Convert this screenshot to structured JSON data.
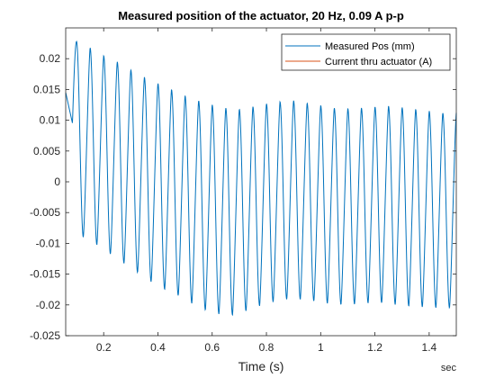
{
  "chart_data": {
    "type": "line",
    "title": "Measured position of the actuator, 20 Hz, 0.09 A p-p",
    "xlabel": "Time (s)",
    "x_unit_label": "sec",
    "ylabel": "",
    "xlim": [
      0.06,
      1.5
    ],
    "ylim": [
      -0.025,
      0.025
    ],
    "xticks": [
      0.2,
      0.4,
      0.6,
      0.8,
      1,
      1.2,
      1.4
    ],
    "xtick_labels": [
      "0.2",
      "0.4",
      "0.6",
      "0.8",
      "1",
      "1.2",
      "1.4"
    ],
    "yticks": [
      -0.025,
      -0.02,
      -0.015,
      -0.01,
      -0.005,
      0,
      0.005,
      0.01,
      0.015,
      0.02
    ],
    "ytick_labels": [
      "-0.025",
      "-0.02",
      "-0.015",
      "-0.01",
      "-0.005",
      "0",
      "0.005",
      "0.01",
      "0.015",
      "0.02"
    ],
    "grid": false,
    "legend_position": "top-right",
    "series": [
      {
        "name": "Measured Pos (mm)",
        "color": "#0072BD",
        "frequency_hz": 20,
        "cycle_start_times": [
          0.1,
          0.15,
          0.2,
          0.25,
          0.3,
          0.35,
          0.4,
          0.45,
          0.5,
          0.55,
          0.6,
          0.65,
          0.7,
          0.75,
          0.8,
          0.85,
          0.9,
          0.95,
          1.0,
          1.05,
          1.1,
          1.15,
          1.2,
          1.25,
          1.3,
          1.35,
          1.4,
          1.45
        ],
        "peaks": [
          0.0228,
          0.0218,
          0.0205,
          0.0195,
          0.0182,
          0.017,
          0.016,
          0.015,
          0.014,
          0.0132,
          0.0125,
          0.012,
          0.0118,
          0.0122,
          0.0127,
          0.013,
          0.0132,
          0.0128,
          0.0124,
          0.012,
          0.0119,
          0.012,
          0.0122,
          0.0123,
          0.0121,
          0.0118,
          0.0115,
          0.0112
        ],
        "troughs": [
          -0.0085,
          -0.0095,
          -0.011,
          -0.0125,
          -0.014,
          -0.0155,
          -0.017,
          -0.018,
          -0.019,
          -0.0205,
          -0.0212,
          -0.0218,
          -0.0215,
          -0.0205,
          -0.0198,
          -0.0192,
          -0.019,
          -0.0192,
          -0.0196,
          -0.0199,
          -0.02,
          -0.0198,
          -0.0196,
          -0.0198,
          -0.0201,
          -0.0203,
          -0.0204,
          -0.0205
        ]
      },
      {
        "name": "Current thru actuator (A)",
        "color": "#D95319"
      }
    ]
  }
}
